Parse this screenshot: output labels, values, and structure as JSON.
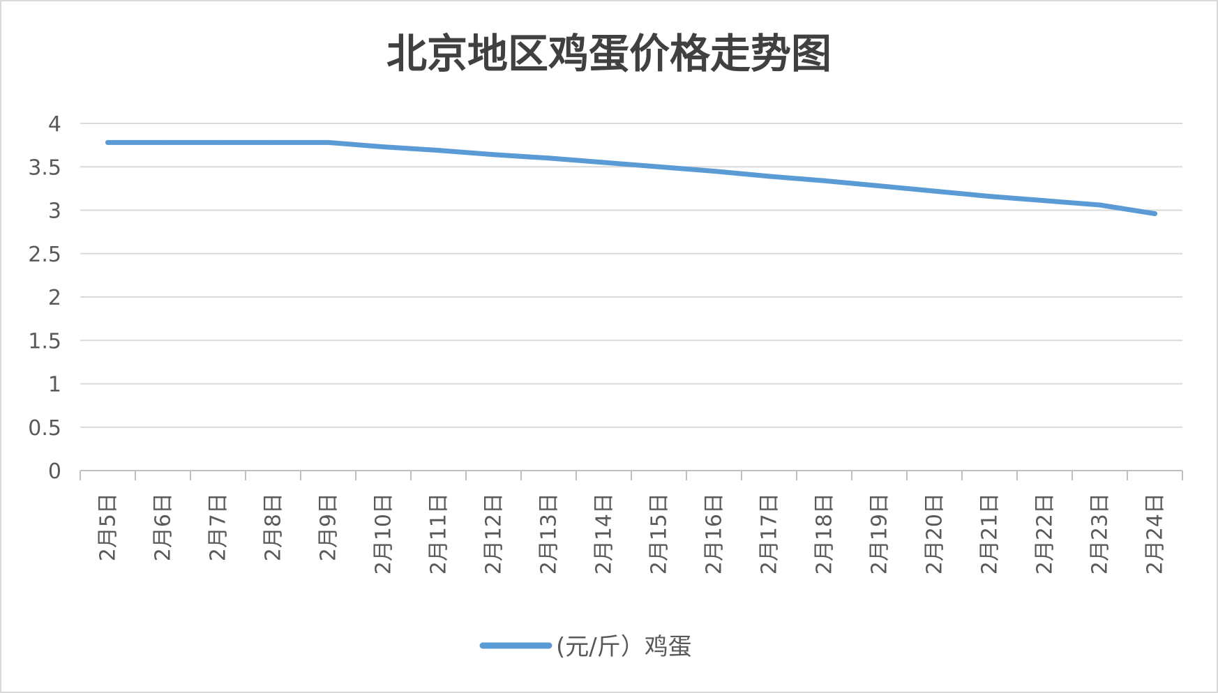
{
  "chart_data": {
    "type": "line",
    "title": "北京地区鸡蛋价格走势图",
    "categories": [
      "2月5日",
      "2月6日",
      "2月7日",
      "2月8日",
      "2月9日",
      "2月10日",
      "2月11日",
      "2月12日",
      "2月13日",
      "2月14日",
      "2月15日",
      "2月16日",
      "2月17日",
      "2月18日",
      "2月19日",
      "2月20日",
      "2月21日",
      "2月22日",
      "2月23日",
      "2月24日"
    ],
    "series": [
      {
        "name": "(元/斤）鸡蛋",
        "color": "#5b9bd5",
        "values": [
          3.78,
          3.78,
          3.78,
          3.78,
          3.78,
          3.73,
          3.69,
          3.64,
          3.6,
          3.55,
          3.5,
          3.45,
          3.39,
          3.34,
          3.28,
          3.22,
          3.16,
          3.11,
          3.06,
          2.96
        ]
      }
    ],
    "ylim": [
      0,
      4
    ],
    "yticks": [
      "0",
      "0.5",
      "1",
      "1.5",
      "2",
      "2.5",
      "3",
      "3.5",
      "4"
    ],
    "xlabel": "",
    "ylabel": "",
    "grid": true,
    "legend": "bottom",
    "colors": {
      "grid": "#d9d9d9",
      "axis": "#bfbfbf",
      "text": "#595959",
      "title": "#404040"
    }
  }
}
